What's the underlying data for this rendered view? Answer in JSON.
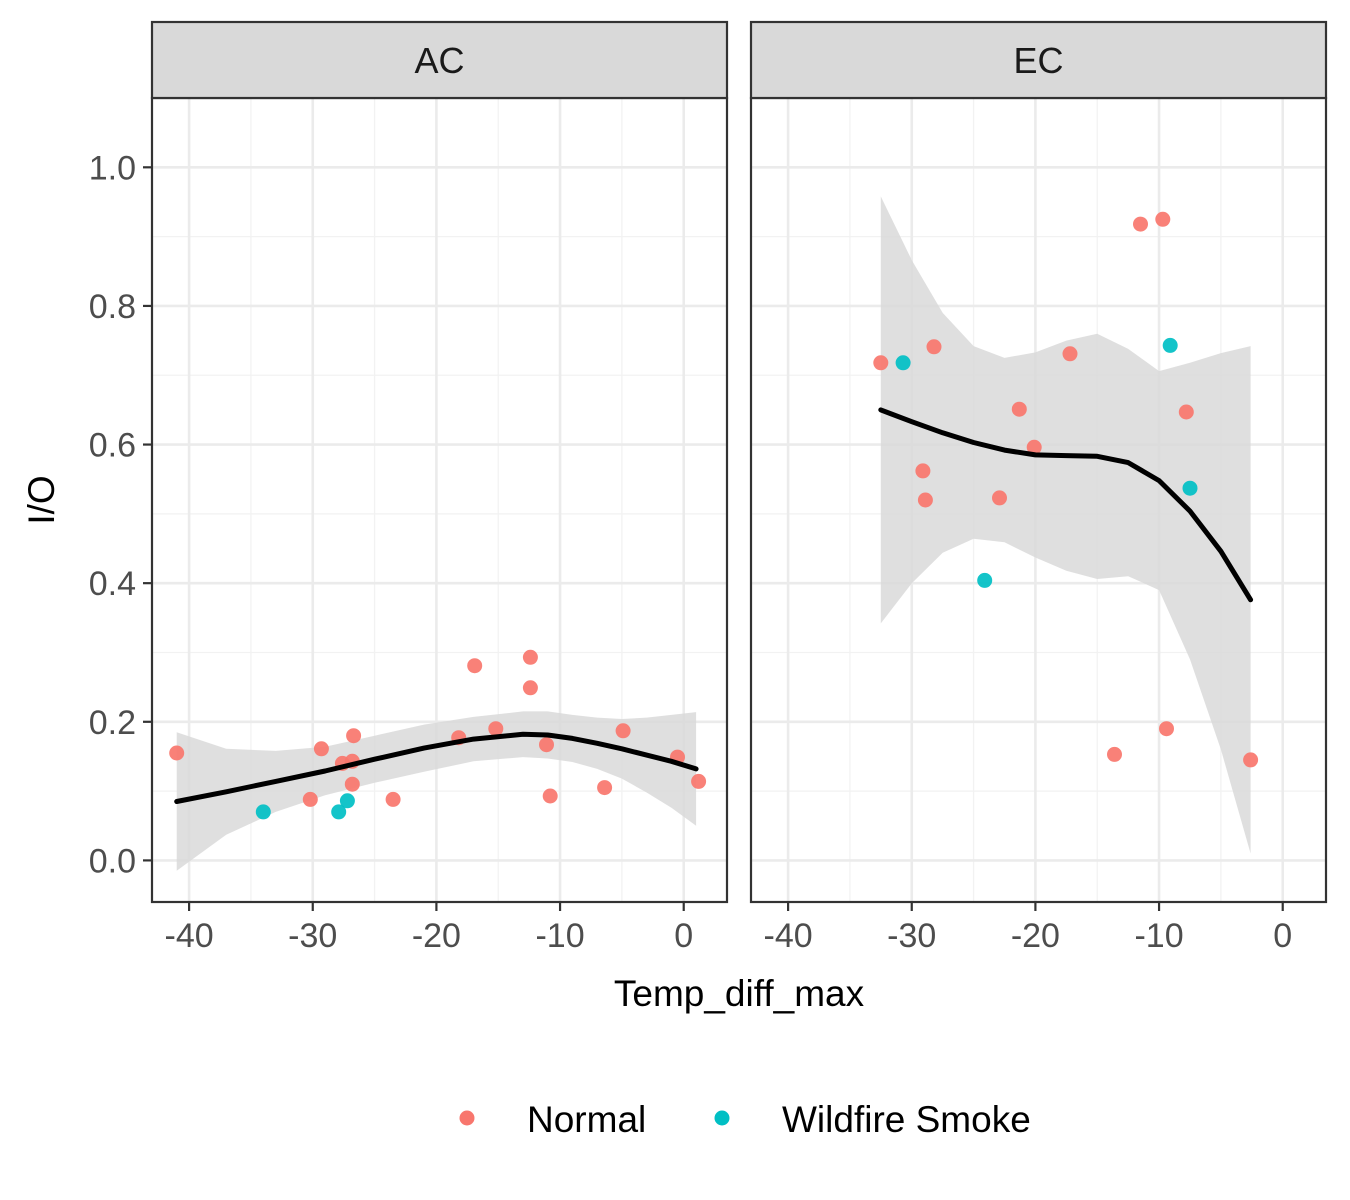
{
  "chart_data": {
    "type": "scatter",
    "xlabel": "Temp_diff_max",
    "ylabel": "I/O",
    "xlim": [
      -43,
      3.5
    ],
    "ylim": [
      -0.06,
      1.1
    ],
    "x_ticks": [
      -40,
      -30,
      -20,
      -10,
      0
    ],
    "x_tick_labels": [
      "-40",
      "-30",
      "-20",
      "-10",
      "0"
    ],
    "y_ticks": [
      0.0,
      0.2,
      0.4,
      0.6,
      0.8,
      1.0
    ],
    "y_tick_labels": [
      "0.0",
      "0.2",
      "0.4",
      "0.6",
      "0.8",
      "1.0"
    ],
    "grid": true,
    "legend_position": "bottom",
    "legend": [
      {
        "label": "Normal",
        "color": "#F8766D"
      },
      {
        "label": "Wildfire Smoke",
        "color": "#00BFC4"
      }
    ],
    "smooth_color": "#000000",
    "band_color": "#d9d9d9",
    "panels": [
      {
        "label": "AC",
        "points": [
          {
            "x": -41,
            "y": 0.155,
            "group": "Normal"
          },
          {
            "x": -34,
            "y": 0.07,
            "group": "Wildfire Smoke"
          },
          {
            "x": -30.2,
            "y": 0.088,
            "group": "Normal"
          },
          {
            "x": -29.3,
            "y": 0.161,
            "group": "Normal"
          },
          {
            "x": -27.9,
            "y": 0.07,
            "group": "Wildfire Smoke"
          },
          {
            "x": -27.6,
            "y": 0.14,
            "group": "Normal"
          },
          {
            "x": -27.2,
            "y": 0.086,
            "group": "Wildfire Smoke"
          },
          {
            "x": -26.8,
            "y": 0.11,
            "group": "Normal"
          },
          {
            "x": -26.7,
            "y": 0.18,
            "group": "Normal"
          },
          {
            "x": -26.8,
            "y": 0.143,
            "group": "Normal"
          },
          {
            "x": -23.5,
            "y": 0.088,
            "group": "Normal"
          },
          {
            "x": -18.2,
            "y": 0.177,
            "group": "Normal"
          },
          {
            "x": -16.9,
            "y": 0.281,
            "group": "Normal"
          },
          {
            "x": -15.2,
            "y": 0.19,
            "group": "Normal"
          },
          {
            "x": -12.4,
            "y": 0.293,
            "group": "Normal"
          },
          {
            "x": -12.4,
            "y": 0.249,
            "group": "Normal"
          },
          {
            "x": -11.1,
            "y": 0.167,
            "group": "Normal"
          },
          {
            "x": -10.8,
            "y": 0.093,
            "group": "Normal"
          },
          {
            "x": -6.4,
            "y": 0.105,
            "group": "Normal"
          },
          {
            "x": -4.9,
            "y": 0.187,
            "group": "Normal"
          },
          {
            "x": -0.5,
            "y": 0.149,
            "group": "Normal"
          },
          {
            "x": 1.2,
            "y": 0.114,
            "group": "Normal"
          }
        ],
        "smooth": {
          "x": [
            -41,
            -37,
            -33,
            -29,
            -25,
            -21,
            -17,
            -13,
            -11,
            -9,
            -7,
            -5,
            -3,
            -1,
            1
          ],
          "y": [
            0.085,
            0.099,
            0.114,
            0.129,
            0.146,
            0.162,
            0.175,
            0.182,
            0.181,
            0.176,
            0.169,
            0.161,
            0.152,
            0.143,
            0.132
          ],
          "lower": [
            -0.015,
            0.037,
            0.07,
            0.094,
            0.112,
            0.128,
            0.143,
            0.149,
            0.147,
            0.142,
            0.132,
            0.118,
            0.098,
            0.076,
            0.05
          ],
          "upper": [
            0.185,
            0.161,
            0.158,
            0.164,
            0.18,
            0.196,
            0.207,
            0.215,
            0.215,
            0.21,
            0.206,
            0.204,
            0.206,
            0.21,
            0.214
          ]
        }
      },
      {
        "label": "EC",
        "points": [
          {
            "x": -32.5,
            "y": 0.718,
            "group": "Normal"
          },
          {
            "x": -30.7,
            "y": 0.718,
            "group": "Wildfire Smoke"
          },
          {
            "x": -29.1,
            "y": 0.562,
            "group": "Normal"
          },
          {
            "x": -28.9,
            "y": 0.52,
            "group": "Normal"
          },
          {
            "x": -28.2,
            "y": 0.741,
            "group": "Normal"
          },
          {
            "x": -24.1,
            "y": 0.404,
            "group": "Wildfire Smoke"
          },
          {
            "x": -22.9,
            "y": 0.523,
            "group": "Normal"
          },
          {
            "x": -21.3,
            "y": 0.651,
            "group": "Normal"
          },
          {
            "x": -20.1,
            "y": 0.596,
            "group": "Normal"
          },
          {
            "x": -17.2,
            "y": 0.731,
            "group": "Normal"
          },
          {
            "x": -13.6,
            "y": 0.153,
            "group": "Normal"
          },
          {
            "x": -11.5,
            "y": 0.918,
            "group": "Normal"
          },
          {
            "x": -9.7,
            "y": 0.925,
            "group": "Normal"
          },
          {
            "x": -9.4,
            "y": 0.19,
            "group": "Normal"
          },
          {
            "x": -9.1,
            "y": 0.743,
            "group": "Wildfire Smoke"
          },
          {
            "x": -7.8,
            "y": 0.647,
            "group": "Normal"
          },
          {
            "x": -7.5,
            "y": 0.537,
            "group": "Wildfire Smoke"
          },
          {
            "x": -2.6,
            "y": 0.145,
            "group": "Normal"
          }
        ],
        "smooth": {
          "x": [
            -32.5,
            -30,
            -27.5,
            -25,
            -22.5,
            -20,
            -17.5,
            -15,
            -12.5,
            -10,
            -7.5,
            -5,
            -2.6
          ],
          "y": [
            0.65,
            0.633,
            0.617,
            0.603,
            0.592,
            0.585,
            0.584,
            0.583,
            0.574,
            0.548,
            0.504,
            0.446,
            0.376
          ],
          "lower": [
            0.342,
            0.4,
            0.444,
            0.464,
            0.459,
            0.437,
            0.418,
            0.406,
            0.41,
            0.39,
            0.29,
            0.16,
            0.01
          ],
          "upper": [
            0.958,
            0.866,
            0.79,
            0.742,
            0.725,
            0.733,
            0.75,
            0.76,
            0.738,
            0.706,
            0.718,
            0.732,
            0.742
          ]
        }
      }
    ]
  }
}
